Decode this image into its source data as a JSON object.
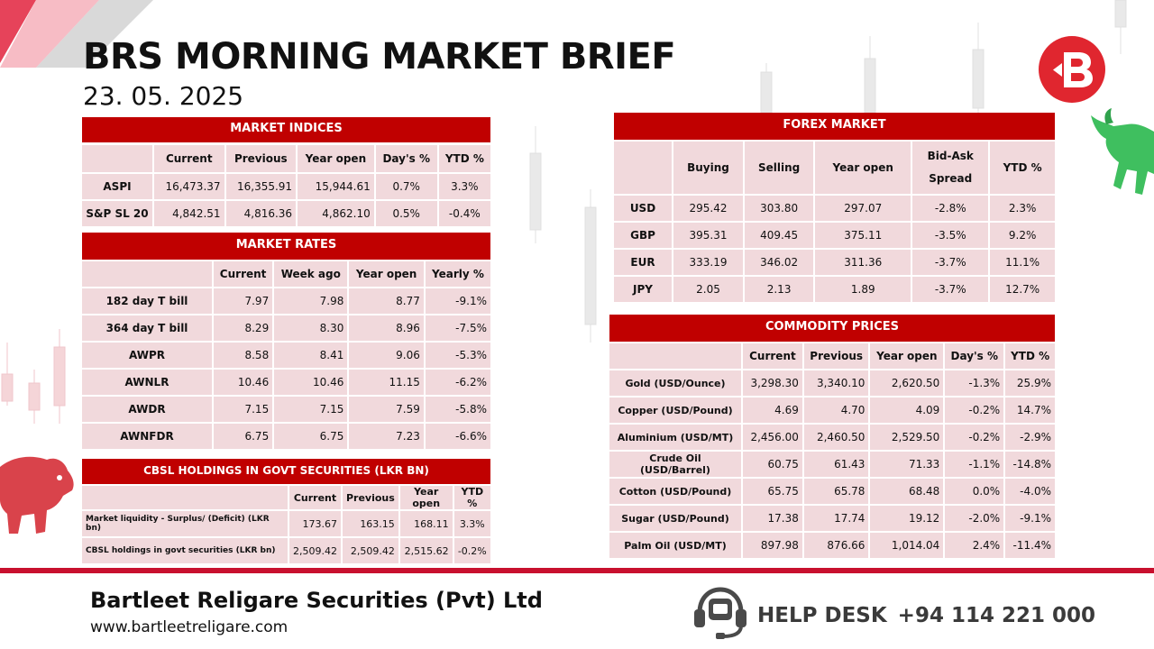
{
  "header": {
    "title": "BRS MORNING MARKET BRIEF",
    "date": "23. 05. 2025"
  },
  "market_indices": {
    "title": "MARKET INDICES",
    "columns": [
      "",
      "Current",
      "Previous",
      "Year open",
      "Day's %",
      "YTD %"
    ],
    "rows": [
      [
        "ASPI",
        "16,473.37",
        "16,355.91",
        "15,944.61",
        "0.7%",
        "3.3%"
      ],
      [
        "S&P SL 20",
        "4,842.51",
        "4,816.36",
        "4,862.10",
        "0.5%",
        "-0.4%"
      ]
    ]
  },
  "market_rates": {
    "title": "MARKET RATES",
    "columns": [
      "",
      "Current",
      "Week ago",
      "Year open",
      "Yearly %"
    ],
    "rows": [
      [
        "182 day T bill",
        "7.97",
        "7.98",
        "8.77",
        "-9.1%"
      ],
      [
        "364 day T bill",
        "8.29",
        "8.30",
        "8.96",
        "-7.5%"
      ],
      [
        "AWPR",
        "8.58",
        "8.41",
        "9.06",
        "-5.3%"
      ],
      [
        "AWNLR",
        "10.46",
        "10.46",
        "11.15",
        "-6.2%"
      ],
      [
        "AWDR",
        "7.15",
        "7.15",
        "7.59",
        "-5.8%"
      ],
      [
        "AWNFDR",
        "6.75",
        "6.75",
        "7.23",
        "-6.6%"
      ]
    ]
  },
  "cbsl_holdings": {
    "title": "CBSL HOLDINGS IN GOVT SECURITIES (LKR BN)",
    "columns": [
      "",
      "Current",
      "Previous",
      "Year open",
      "YTD %"
    ],
    "rows": [
      [
        "Market liquidity - Surplus/ (Deficit) (LKR bn)",
        "173.67",
        "163.15",
        "168.11",
        "3.3%"
      ],
      [
        "CBSL holdings in govt securities (LKR bn)",
        "2,509.42",
        "2,509.42",
        "2,515.62",
        "-0.2%"
      ]
    ]
  },
  "forex_market": {
    "title": "FOREX MARKET",
    "columns": [
      "",
      "Buying",
      "Selling",
      "Year open",
      "Bid-Ask Spread",
      "YTD %"
    ],
    "rows": [
      [
        "USD",
        "295.42",
        "303.80",
        "297.07",
        "-2.8%",
        "2.3%"
      ],
      [
        "GBP",
        "395.31",
        "409.45",
        "375.11",
        "-3.5%",
        "9.2%"
      ],
      [
        "EUR",
        "333.19",
        "346.02",
        "311.36",
        "-3.7%",
        "11.1%"
      ],
      [
        "JPY",
        "2.05",
        "2.13",
        "1.89",
        "-3.7%",
        "12.7%"
      ]
    ]
  },
  "commodity_prices": {
    "title": "COMMODITY PRICES",
    "columns": [
      "",
      "Current",
      "Previous",
      "Year open",
      "Day's %",
      "YTD %"
    ],
    "rows": [
      [
        "Gold (USD/Ounce)",
        "3,298.30",
        "3,340.10",
        "2,620.50",
        "-1.3%",
        "25.9%"
      ],
      [
        "Copper (USD/Pound)",
        "4.69",
        "4.70",
        "4.09",
        "-0.2%",
        "14.7%"
      ],
      [
        "Aluminium (USD/MT)",
        "2,456.00",
        "2,460.50",
        "2,529.50",
        "-0.2%",
        "-2.9%"
      ],
      [
        "Crude Oil (USD/Barrel)",
        "60.75",
        "61.43",
        "71.33",
        "-1.1%",
        "-14.8%"
      ],
      [
        "Cotton (USD/Pound)",
        "65.75",
        "65.78",
        "68.48",
        "0.0%",
        "-4.0%"
      ],
      [
        "Sugar (USD/Pound)",
        "17.38",
        "17.74",
        "19.12",
        "-2.0%",
        "-9.1%"
      ],
      [
        "Palm Oil (USD/MT)",
        "897.98",
        "876.66",
        "1,014.04",
        "2.4%",
        "-11.4%"
      ]
    ]
  },
  "footer": {
    "company": "Bartleet Religare Securities (Pvt) Ltd",
    "website": "www.bartleetreligare.com",
    "helpdesk_label": "HELP DESK",
    "helpdesk_number": "+94 114 221 000"
  },
  "colors": {
    "accent_red": "#c00000",
    "cell_pink": "#f1d9dc",
    "bull_green": "#3fbf5f",
    "bear_red": "#d9434b"
  },
  "icons": [
    "brs-logo-icon",
    "bull-icon",
    "bear-icon",
    "headset-icon"
  ]
}
